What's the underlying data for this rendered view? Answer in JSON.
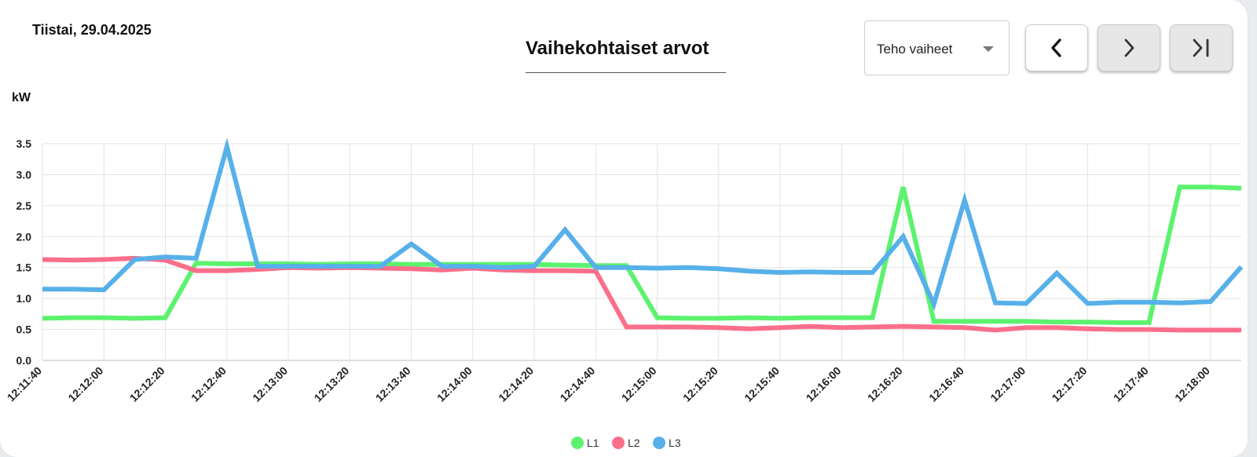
{
  "header": {
    "date": "Tiistai, 29.04.2025",
    "title": "Vaihekohtaiset arvot"
  },
  "controls": {
    "select_value": "Teho vaiheet",
    "nav": [
      {
        "name": "previous-button",
        "icon": "chevron-left-icon",
        "state": "enabled"
      },
      {
        "name": "next-button",
        "icon": "chevron-right-icon",
        "state": "disabled"
      },
      {
        "name": "latest-button",
        "icon": "skip-to-end-icon",
        "state": "disabled"
      }
    ]
  },
  "chart_data": {
    "type": "line",
    "ylabel": "kW",
    "ylim": [
      0,
      3.5
    ],
    "yticks": [
      "0.0",
      "0.5",
      "1.0",
      "1.5",
      "2.0",
      "2.5",
      "3.0",
      "3.5"
    ],
    "grid": true,
    "legend_position": "bottom",
    "x": [
      "12:11:40",
      "12:11:50",
      "12:12:00",
      "12:12:10",
      "12:12:20",
      "12:12:30",
      "12:12:40",
      "12:12:50",
      "12:13:00",
      "12:13:10",
      "12:13:20",
      "12:13:30",
      "12:13:40",
      "12:13:50",
      "12:14:00",
      "12:14:10",
      "12:14:20",
      "12:14:30",
      "12:14:40",
      "12:14:50",
      "12:15:00",
      "12:15:10",
      "12:15:20",
      "12:15:30",
      "12:15:40",
      "12:15:50",
      "12:16:00",
      "12:16:10",
      "12:16:20",
      "12:16:30",
      "12:16:40",
      "12:16:50",
      "12:17:00",
      "12:17:10",
      "12:17:20",
      "12:17:30",
      "12:17:40",
      "12:17:50",
      "12:18:00",
      "12:18:10"
    ],
    "xtick_labels": [
      "12:11:40",
      "12:12:00",
      "12:12:20",
      "12:12:40",
      "12:13:00",
      "12:13:20",
      "12:13:40",
      "12:14:00",
      "12:14:20",
      "12:14:40",
      "12:15:00",
      "12:15:20",
      "12:15:40",
      "12:16:00",
      "12:16:20",
      "12:16:40",
      "12:17:00",
      "12:17:20",
      "12:17:40",
      "12:18:00"
    ],
    "series": [
      {
        "name": "L1",
        "color": "#5cf26e",
        "values": [
          0.68,
          0.69,
          0.69,
          0.68,
          0.69,
          1.57,
          1.56,
          1.56,
          1.56,
          1.55,
          1.56,
          1.56,
          1.55,
          1.55,
          1.55,
          1.55,
          1.55,
          1.54,
          1.53,
          1.53,
          0.69,
          0.68,
          0.68,
          0.69,
          0.68,
          0.69,
          0.69,
          0.69,
          2.8,
          0.63,
          0.63,
          0.63,
          0.63,
          0.62,
          0.62,
          0.61,
          0.61,
          2.8,
          2.8,
          2.78
        ]
      },
      {
        "name": "L2",
        "color": "#fb6f8b",
        "values": [
          1.63,
          1.62,
          1.63,
          1.65,
          1.62,
          1.45,
          1.45,
          1.47,
          1.5,
          1.49,
          1.5,
          1.49,
          1.48,
          1.46,
          1.49,
          1.46,
          1.45,
          1.45,
          1.44,
          0.54,
          0.54,
          0.54,
          0.53,
          0.51,
          0.53,
          0.55,
          0.53,
          0.54,
          0.55,
          0.54,
          0.53,
          0.49,
          0.53,
          0.53,
          0.51,
          0.5,
          0.5,
          0.49,
          0.49,
          0.49
        ]
      },
      {
        "name": "L3",
        "color": "#57b0e9",
        "values": [
          1.15,
          1.15,
          1.14,
          1.63,
          1.67,
          1.65,
          3.45,
          1.52,
          1.52,
          1.52,
          1.52,
          1.52,
          1.88,
          1.52,
          1.52,
          1.5,
          1.52,
          2.11,
          1.5,
          1.5,
          1.49,
          1.5,
          1.48,
          1.44,
          1.42,
          1.43,
          1.42,
          1.42,
          2.0,
          0.91,
          2.59,
          0.93,
          0.92,
          1.41,
          0.92,
          0.94,
          0.94,
          0.93,
          0.95,
          1.51
        ]
      }
    ]
  }
}
